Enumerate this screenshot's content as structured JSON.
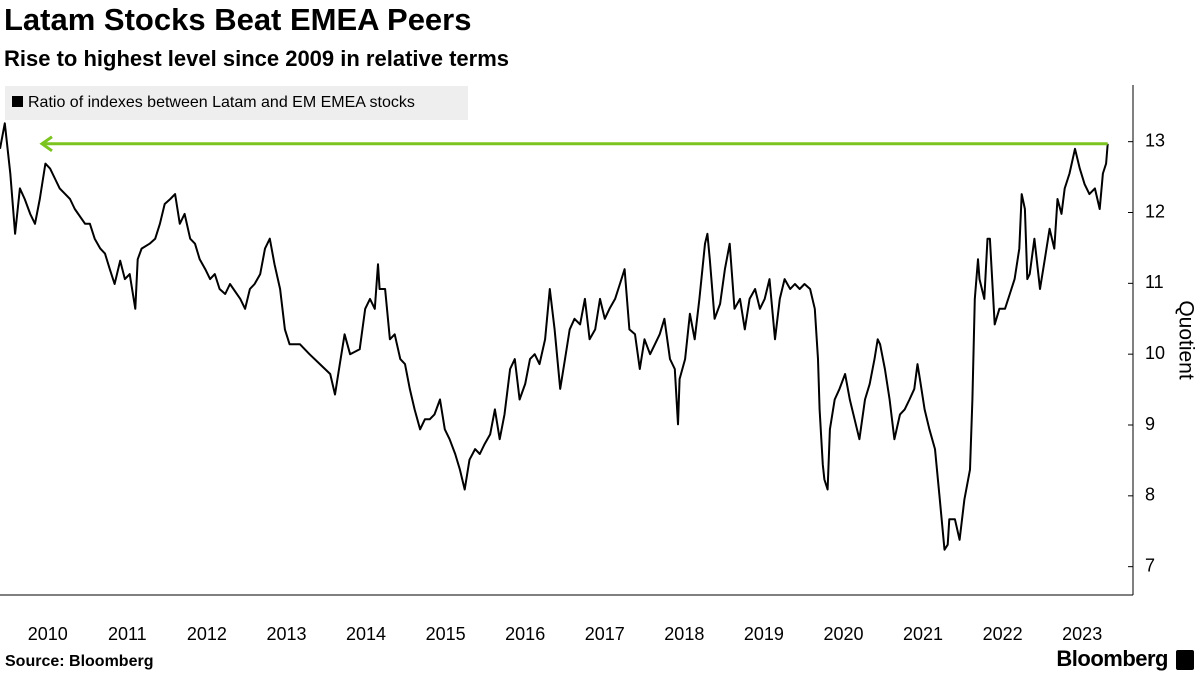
{
  "chart_data": {
    "type": "line",
    "title": "Latam Stocks Beat EMEA Peers",
    "subtitle": "Rise to highest level since 2009 in relative terms",
    "ylabel": "Quotient",
    "source": "Source: Bloomberg",
    "brand": "Bloomberg",
    "xlim": [
      2009.9,
      2023.95
    ],
    "ylim": [
      6.6,
      13.8
    ],
    "yticks": [
      7,
      8,
      9,
      10,
      11,
      12,
      13
    ],
    "xticks": [
      {
        "value": 2010.5,
        "label": "2010"
      },
      {
        "value": 2011.5,
        "label": "2011"
      },
      {
        "value": 2012.5,
        "label": "2012"
      },
      {
        "value": 2013.5,
        "label": "2013"
      },
      {
        "value": 2014.5,
        "label": "2014"
      },
      {
        "value": 2015.5,
        "label": "2015"
      },
      {
        "value": 2016.5,
        "label": "2016"
      },
      {
        "value": 2017.5,
        "label": "2017"
      },
      {
        "value": 2018.5,
        "label": "2018"
      },
      {
        "value": 2019.5,
        "label": "2019"
      },
      {
        "value": 2020.5,
        "label": "2020"
      },
      {
        "value": 2021.5,
        "label": "2021"
      },
      {
        "value": 2022.5,
        "label": "2022"
      },
      {
        "value": 2023.5,
        "label": "2023"
      }
    ],
    "x": [
      2009.9,
      2009.96,
      2010.03,
      2010.09,
      2010.15,
      2010.21,
      2010.28,
      2010.34,
      2010.4,
      2010.47,
      2010.53,
      2010.59,
      2010.65,
      2010.72,
      2010.78,
      2010.84,
      2010.97,
      2011.03,
      2011.09,
      2011.16,
      2011.22,
      2011.28,
      2011.34,
      2011.41,
      2011.47,
      2011.53,
      2011.6,
      2011.63,
      2011.68,
      2011.78,
      2011.85,
      2011.91,
      2011.97,
      2012.04,
      2012.1,
      2012.16,
      2012.22,
      2012.29,
      2012.35,
      2012.41,
      2012.48,
      2012.54,
      2012.6,
      2012.66,
      2012.73,
      2012.79,
      2012.92,
      2012.98,
      2013.04,
      2013.1,
      2013.17,
      2013.23,
      2013.29,
      2013.35,
      2013.42,
      2013.48,
      2013.54,
      2013.67,
      2013.79,
      2013.92,
      2014.05,
      2014.11,
      2014.17,
      2014.23,
      2014.3,
      2014.42,
      2014.49,
      2014.55,
      2014.61,
      2014.65,
      2014.67,
      2014.74,
      2014.8,
      2014.86,
      2014.93,
      2014.99,
      2015.05,
      2015.11,
      2015.18,
      2015.24,
      2015.3,
      2015.36,
      2015.43,
      2015.49,
      2015.55,
      2015.62,
      2015.68,
      2015.74,
      2015.8,
      2015.87,
      2015.93,
      2015.99,
      2016.06,
      2016.12,
      2016.18,
      2016.24,
      2016.31,
      2016.37,
      2016.43,
      2016.5,
      2016.56,
      2016.62,
      2016.68,
      2016.75,
      2016.81,
      2016.87,
      2016.94,
      2017.0,
      2017.06,
      2017.12,
      2017.19,
      2017.25,
      2017.31,
      2017.38,
      2017.44,
      2017.5,
      2017.56,
      2017.63,
      2017.69,
      2017.75,
      2017.81,
      2017.88,
      2017.94,
      2018.0,
      2018.07,
      2018.13,
      2018.19,
      2018.25,
      2018.32,
      2018.38,
      2018.42,
      2018.44,
      2018.51,
      2018.57,
      2018.63,
      2018.69,
      2018.76,
      2018.79,
      2018.82,
      2018.88,
      2018.95,
      2019.01,
      2019.07,
      2019.13,
      2019.2,
      2019.26,
      2019.32,
      2019.39,
      2019.45,
      2019.51,
      2019.57,
      2019.64,
      2019.7,
      2019.76,
      2019.83,
      2019.89,
      2019.95,
      2020.01,
      2020.08,
      2020.14,
      2020.18,
      2020.2,
      2020.24,
      2020.26,
      2020.3,
      2020.33,
      2020.39,
      2020.45,
      2020.52,
      2020.58,
      2020.64,
      2020.7,
      2020.77,
      2020.83,
      2020.89,
      2020.93,
      2020.96,
      2021.02,
      2021.08,
      2021.14,
      2021.21,
      2021.27,
      2021.33,
      2021.39,
      2021.43,
      2021.46,
      2021.52,
      2021.58,
      2021.65,
      2021.71,
      2021.77,
      2021.81,
      2021.83,
      2021.9,
      2021.96,
      2022.02,
      2022.09,
      2022.12,
      2022.15,
      2022.19,
      2022.21,
      2022.27,
      2022.31,
      2022.34,
      2022.4,
      2022.46,
      2022.53,
      2022.59,
      2022.65,
      2022.71,
      2022.74,
      2022.78,
      2022.81,
      2022.84,
      2022.9,
      2022.97,
      2023.03,
      2023.09,
      2023.15,
      2023.19,
      2023.24,
      2023.28,
      2023.34,
      2023.41,
      2023.47,
      2023.53,
      2023.59,
      2023.66,
      2023.72,
      2023.76,
      2023.8,
      2023.82
    ],
    "series": [
      {
        "name": "Ratio of indexes between Latam and EM EMEA stocks",
        "color": "#000000",
        "values": [
          12.9,
          13.26,
          12.55,
          11.7,
          12.34,
          12.19,
          11.98,
          11.84,
          12.19,
          12.69,
          12.62,
          12.48,
          12.34,
          12.26,
          12.19,
          12.05,
          11.84,
          11.84,
          11.63,
          11.49,
          11.42,
          11.2,
          10.99,
          11.32,
          11.06,
          11.13,
          10.64,
          11.34,
          11.49,
          11.56,
          11.63,
          11.84,
          12.12,
          12.19,
          12.26,
          11.84,
          11.98,
          11.63,
          11.56,
          11.34,
          11.2,
          11.06,
          11.13,
          10.92,
          10.85,
          10.99,
          10.78,
          10.64,
          10.92,
          10.99,
          11.13,
          11.49,
          11.63,
          11.27,
          10.92,
          10.35,
          10.14,
          10.14,
          10.0,
          9.86,
          9.72,
          9.43,
          9.86,
          10.28,
          10.0,
          10.07,
          10.64,
          10.78,
          10.64,
          11.27,
          10.92,
          10.92,
          10.21,
          10.28,
          9.93,
          9.86,
          9.51,
          9.22,
          8.94,
          9.08,
          9.08,
          9.15,
          9.36,
          8.94,
          8.8,
          8.59,
          8.37,
          8.09,
          8.51,
          8.66,
          8.59,
          8.73,
          8.87,
          9.22,
          8.8,
          9.15,
          9.79,
          9.93,
          9.36,
          9.58,
          9.93,
          10.0,
          9.86,
          10.21,
          10.92,
          10.35,
          9.51,
          9.93,
          10.35,
          10.5,
          10.42,
          10.78,
          10.21,
          10.35,
          10.78,
          10.5,
          10.64,
          10.78,
          10.99,
          11.2,
          10.35,
          10.28,
          9.79,
          10.21,
          10.0,
          10.14,
          10.28,
          10.5,
          9.93,
          9.79,
          9.01,
          9.65,
          9.93,
          10.57,
          10.21,
          10.78,
          11.56,
          11.7,
          11.34,
          10.5,
          10.71,
          11.2,
          11.56,
          10.64,
          10.78,
          10.35,
          10.78,
          10.92,
          10.64,
          10.78,
          11.06,
          10.21,
          10.78,
          11.06,
          10.92,
          10.99,
          10.92,
          10.99,
          10.92,
          10.64,
          9.93,
          9.22,
          8.44,
          8.23,
          8.09,
          8.94,
          9.36,
          9.51,
          9.72,
          9.36,
          9.08,
          8.8,
          9.36,
          9.58,
          9.93,
          10.21,
          10.14,
          9.79,
          9.36,
          8.8,
          9.15,
          9.22,
          9.36,
          9.51,
          9.86,
          9.65,
          9.22,
          8.94,
          8.66,
          7.95,
          7.24,
          7.31,
          7.67,
          7.67,
          7.38,
          7.95,
          8.37,
          9.36,
          10.78,
          11.34,
          11.06,
          10.78,
          11.63,
          11.63,
          10.42,
          10.64,
          10.64,
          10.85,
          11.06,
          11.49,
          12.26,
          12.05,
          11.06,
          11.13,
          11.63,
          10.92,
          11.34,
          11.77,
          11.49,
          12.19,
          11.98,
          12.34,
          12.55,
          12.9,
          12.62,
          12.4,
          12.26,
          12.34,
          12.05,
          12.55,
          12.69,
          12.97
        ]
      }
    ]
  }
}
